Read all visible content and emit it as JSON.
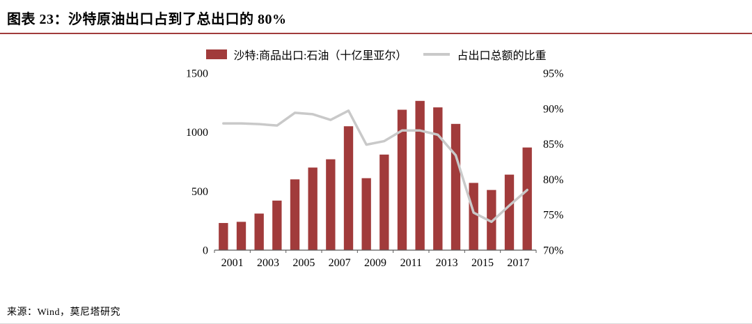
{
  "header": {
    "title": "图表 23：沙特原油出口占到了总出口的 80%"
  },
  "footer": {
    "source": "来源：Wind，莫尼塔研究"
  },
  "colors": {
    "bar": "#A13B3B",
    "line": "#C9C9C9",
    "accent_rule": "#A13B3B",
    "axis_line": "#595959",
    "text": "#000000"
  },
  "chart_data": {
    "type": "bar",
    "subtype": "bar+line combo, dual axis",
    "categories": [
      2001,
      2002,
      2003,
      2004,
      2005,
      2006,
      2007,
      2008,
      2009,
      2010,
      2011,
      2012,
      2013,
      2014,
      2015,
      2016,
      2017,
      2018
    ],
    "series": [
      {
        "name": "沙特:商品出口:石油（十亿里亚尔）",
        "type": "bar",
        "axis": "left",
        "values": [
          230,
          240,
          310,
          420,
          600,
          700,
          770,
          1050,
          610,
          810,
          1190,
          1265,
          1210,
          1070,
          570,
          510,
          640,
          870
        ]
      },
      {
        "name": "占出口总额的比重",
        "type": "line",
        "axis": "right",
        "values": [
          87.9,
          87.9,
          87.8,
          87.6,
          89.4,
          89.2,
          88.4,
          89.7,
          84.9,
          85.4,
          86.9,
          86.9,
          86.3,
          83.4,
          75.3,
          74.0,
          76.3,
          78.5
        ]
      }
    ],
    "left_axis": {
      "min": 0,
      "max": 1500,
      "ticks": [
        0,
        500,
        1000,
        1500
      ]
    },
    "right_axis": {
      "min": 70,
      "max": 95,
      "ticks": [
        "70%",
        "75%",
        "80%",
        "85%",
        "90%",
        "95%"
      ]
    },
    "x_tick_labels": [
      "2001",
      "2003",
      "2005",
      "2007",
      "2009",
      "2011",
      "2013",
      "2015",
      "2017"
    ],
    "title": "沙特原油出口占到了总出口的 80%",
    "legend_position": "top",
    "grid": false
  }
}
